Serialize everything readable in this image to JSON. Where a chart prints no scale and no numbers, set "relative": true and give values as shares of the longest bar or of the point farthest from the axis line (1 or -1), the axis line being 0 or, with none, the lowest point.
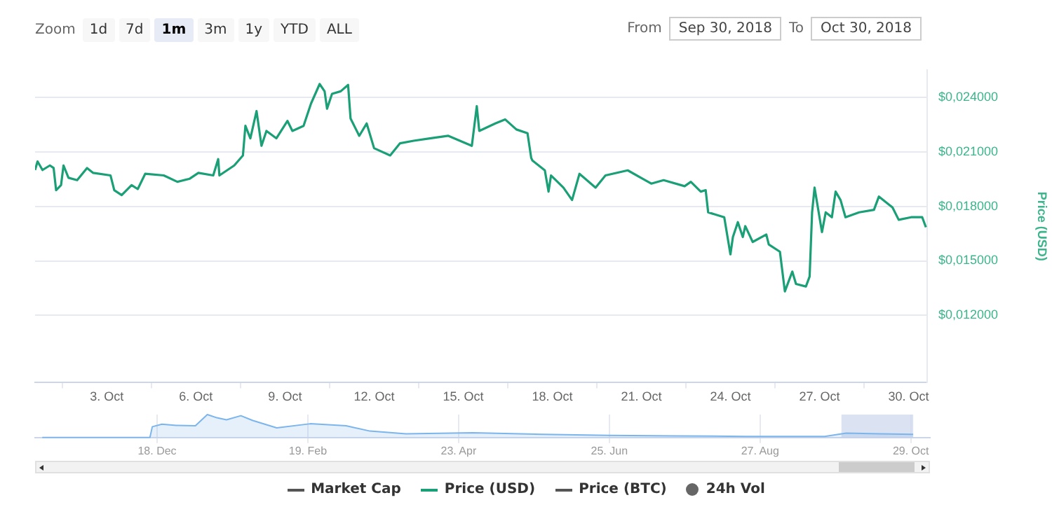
{
  "chart_data": [
    {
      "type": "line",
      "ylabel": "Price (USD)",
      "xlim": [
        "2018-09-30T14:00",
        "2018-10-30T15:00"
      ],
      "ylim": [
        0.0083,
        0.0255
      ],
      "xticks": [
        {
          "value": "2018-10-03",
          "label": "3. Oct"
        },
        {
          "value": "2018-10-06",
          "label": "6. Oct"
        },
        {
          "value": "2018-10-09",
          "label": "9. Oct"
        },
        {
          "value": "2018-10-12",
          "label": "12. Oct"
        },
        {
          "value": "2018-10-15",
          "label": "15. Oct"
        },
        {
          "value": "2018-10-18",
          "label": "18. Oct"
        },
        {
          "value": "2018-10-21",
          "label": "21. Oct"
        },
        {
          "value": "2018-10-24",
          "label": "24. Oct"
        },
        {
          "value": "2018-10-27",
          "label": "27. Oct"
        },
        {
          "value": "2018-10-30",
          "label": "30. Oct"
        }
      ],
      "yticks": [
        {
          "value": 0.012,
          "label": "$0,012000"
        },
        {
          "value": 0.015,
          "label": "$0,015000"
        },
        {
          "value": 0.018,
          "label": "$0,018000"
        },
        {
          "value": 0.021,
          "label": "$0,021000"
        },
        {
          "value": 0.024,
          "label": "$0,024000"
        }
      ],
      "grid": "y",
      "legend": "bottom",
      "annotations": [
        "Zoom",
        "1d",
        "7d",
        "1m",
        "3m",
        "1y",
        "YTD",
        "ALL",
        "From",
        "Sep 30, 2018",
        "To",
        "Oct 30, 2018"
      ],
      "series": [
        {
          "name": "Market Cap",
          "color": "#555555"
        },
        {
          "name": "Price (USD)",
          "color": "#1a9f77",
          "x": [
            "2018-09-30T14:00",
            "2018-09-30T16:00",
            "2018-09-30T20:00",
            "2018-10-01T02:00",
            "2018-10-01T05:00",
            "2018-10-01T07:00",
            "2018-10-01T11:00",
            "2018-10-01T13:00",
            "2018-10-01T17:00",
            "2018-10-02T00:00",
            "2018-10-02T08:00",
            "2018-10-02T13:00",
            "2018-10-03T03:00",
            "2018-10-03T06:00",
            "2018-10-03T12:00",
            "2018-10-03T20:00",
            "2018-10-04T01:00",
            "2018-10-04T07:00",
            "2018-10-04T22:00",
            "2018-10-05T09:00",
            "2018-10-05T19:00",
            "2018-10-06T02:00",
            "2018-10-06T14:00",
            "2018-10-06T18:00",
            "2018-10-06T19:00",
            "2018-10-07T07:00",
            "2018-10-07T14:00",
            "2018-10-07T16:00",
            "2018-10-07T20:00",
            "2018-10-08T01:00",
            "2018-10-08T05:00",
            "2018-10-08T09:00",
            "2018-10-08T17:00",
            "2018-10-09T02:00",
            "2018-10-09T06:00",
            "2018-10-09T15:00",
            "2018-10-09T21:00",
            "2018-10-10T04:00",
            "2018-10-10T08:00",
            "2018-10-10T10:00",
            "2018-10-10T14:00",
            "2018-10-10T21:00",
            "2018-10-11T03:00",
            "2018-10-11T05:00",
            "2018-10-11T12:00",
            "2018-10-11T18:00",
            "2018-10-12T00:00",
            "2018-10-12T13:00",
            "2018-10-12T21:00",
            "2018-10-13T08:00",
            "2018-10-13T21:00",
            "2018-10-14T12:00",
            "2018-10-15T07:00",
            "2018-10-15T11:00",
            "2018-10-15T13:00",
            "2018-10-16T02:00",
            "2018-10-16T10:00",
            "2018-10-16T19:00",
            "2018-10-17T04:00",
            "2018-10-17T07:00",
            "2018-10-17T08:00",
            "2018-10-17T18:00",
            "2018-10-17T21:00",
            "2018-10-17T23:00",
            "2018-10-18T09:00",
            "2018-10-18T16:00",
            "2018-10-18T22:00",
            "2018-10-19T11:00",
            "2018-10-19T19:00",
            "2018-10-20T13:00",
            "2018-10-21T08:00",
            "2018-10-21T18:00",
            "2018-10-22T11:00",
            "2018-10-22T16:00",
            "2018-10-23T00:00",
            "2018-10-23T04:00",
            "2018-10-23T06:00",
            "2018-10-23T19:00",
            "2018-10-24T00:00",
            "2018-10-24T02:00",
            "2018-10-24T06:00",
            "2018-10-24T10:00",
            "2018-10-24T12:00",
            "2018-10-24T18:00",
            "2018-10-25T05:00",
            "2018-10-25T07:00",
            "2018-10-25T16:00",
            "2018-10-25T20:00",
            "2018-10-26T02:00",
            "2018-10-26T05:00",
            "2018-10-26T13:00",
            "2018-10-26T16:00",
            "2018-10-26T18:00",
            "2018-10-26T20:00",
            "2018-10-27T02:00",
            "2018-10-27T05:00",
            "2018-10-27T10:00",
            "2018-10-27T13:00",
            "2018-10-27T17:00",
            "2018-10-27T21:00",
            "2018-10-28T08:00",
            "2018-10-28T20:00",
            "2018-10-29T00:00",
            "2018-10-29T11:00",
            "2018-10-29T16:00",
            "2018-10-30T02:00",
            "2018-10-30T11:00",
            "2018-10-30T14:00"
          ],
          "values": [
            0.02,
            0.02047,
            0.02,
            0.02025,
            0.02011,
            0.01889,
            0.01917,
            0.02025,
            0.01957,
            0.01944,
            0.02011,
            0.01984,
            0.0197,
            0.01889,
            0.01862,
            0.01917,
            0.01895,
            0.01979,
            0.0197,
            0.01935,
            0.01952,
            0.01984,
            0.0197,
            0.0206,
            0.0197,
            0.02025,
            0.0208,
            0.02243,
            0.02174,
            0.02324,
            0.02133,
            0.02215,
            0.02174,
            0.0227,
            0.02215,
            0.02243,
            0.02365,
            0.02473,
            0.02433,
            0.02337,
            0.02419,
            0.02433,
            0.02468,
            0.02283,
            0.02188,
            0.02256,
            0.0212,
            0.0208,
            0.02147,
            0.02161,
            0.02174,
            0.02188,
            0.02133,
            0.02351,
            0.02215,
            0.02256,
            0.02278,
            0.02223,
            0.02202,
            0.02066,
            0.02052,
            0.01998,
            0.01881,
            0.0197,
            0.01903,
            0.01835,
            0.01979,
            0.01903,
            0.0197,
            0.01998,
            0.01925,
            0.01944,
            0.01911,
            0.01935,
            0.01881,
            0.01889,
            0.01767,
            0.0174,
            0.01536,
            0.01631,
            0.01713,
            0.01631,
            0.01691,
            0.01604,
            0.01645,
            0.0159,
            0.0155,
            0.01332,
            0.01441,
            0.01373,
            0.01359,
            0.01414,
            0.01767,
            0.01903,
            0.01658,
            0.01767,
            0.0174,
            0.01881,
            0.01835,
            0.0174,
            0.01767,
            0.01781,
            0.01854,
            0.01794,
            0.01726,
            0.0174,
            0.0174,
            0.01685
          ]
        },
        {
          "name": "Price (BTC)",
          "color": "#555555"
        },
        {
          "name": "24h Vol",
          "type": "bar",
          "color": "#666666"
        }
      ]
    },
    {
      "type": "area",
      "relative": true,
      "xlim": [
        "2017-10-28",
        "2018-11-06"
      ],
      "grid": "x",
      "xticks": [
        {
          "value": "2017-12-18",
          "label": "18. Dec"
        },
        {
          "value": "2018-02-19",
          "label": "19. Feb"
        },
        {
          "value": "2018-04-23",
          "label": "23. Apr"
        },
        {
          "value": "2018-06-25",
          "label": "25. Jun"
        },
        {
          "value": "2018-08-27",
          "label": "27. Aug"
        },
        {
          "value": "2018-10-29",
          "label": "29. Oct"
        }
      ],
      "bands": [
        {
          "axis": "x",
          "from": "2018-09-30",
          "to": "2018-10-30",
          "color": "#ccd6eb"
        }
      ],
      "series": [
        {
          "color": "#7cb5ec",
          "x": [
            "2017-10-31",
            "2017-12-15",
            "2017-12-16",
            "2017-12-20",
            "2017-12-26",
            "2018-01-03",
            "2018-01-08",
            "2018-01-12",
            "2018-01-16",
            "2018-01-22",
            "2018-01-27",
            "2018-02-06",
            "2018-02-20",
            "2018-03-07",
            "2018-03-17",
            "2018-04-01",
            "2018-04-29",
            "2018-05-28",
            "2018-06-25",
            "2018-07-23",
            "2018-08-21",
            "2018-09-23",
            "2018-10-02",
            "2018-10-16",
            "2018-10-30"
          ],
          "values": [
            0,
            0,
            0.47,
            0.58,
            0.53,
            0.51,
            1,
            0.86,
            0.77,
            0.95,
            0.74,
            0.42,
            0.6,
            0.51,
            0.28,
            0.16,
            0.21,
            0.14,
            0.09,
            0.07,
            0.05,
            0.05,
            0.19,
            0.16,
            0.14
          ]
        }
      ]
    }
  ]
}
